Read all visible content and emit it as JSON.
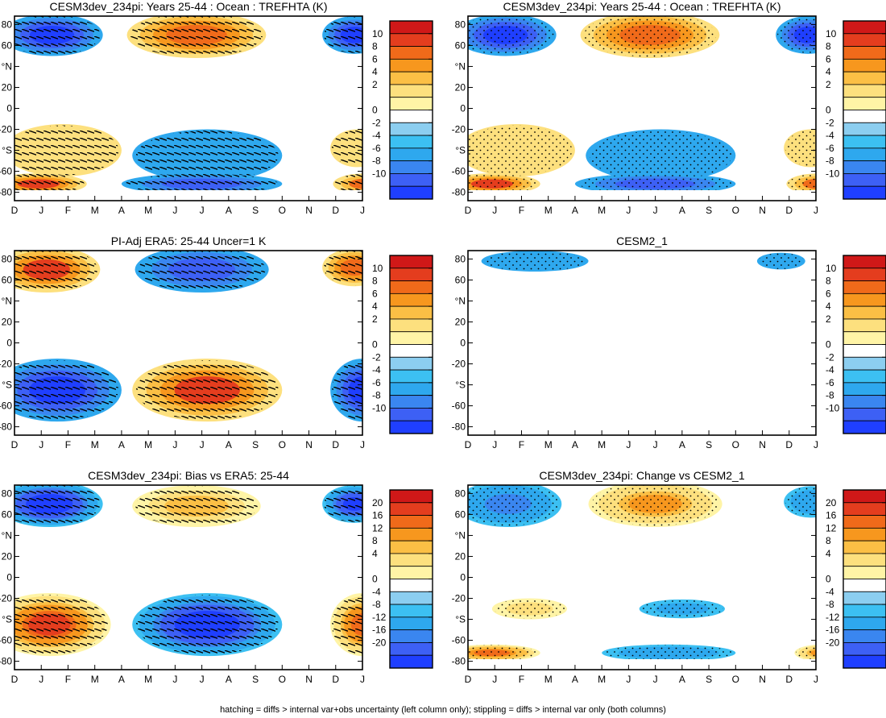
{
  "colors": {
    "scale": [
      "#1f3fff",
      "#3d60f5",
      "#3a86f0",
      "#2ea8ee",
      "#3cc0f2",
      "#8ccef0",
      "#ffffff",
      "#fff4a6",
      "#fde07e",
      "#fbbf45",
      "#f7971e",
      "#f06a1a",
      "#e43d1e",
      "#d01818"
    ]
  },
  "footer": "hatching = diffs > internal var+obs uncertainty (left column only); stippling = diffs > internal var only (both columns)",
  "chart_data": [
    {
      "id": "p1",
      "type": "heatmap",
      "title": "CESM3dev_234pi: Years 25-44 : Ocean : TREFHTA (K)",
      "x_ticks": [
        "D",
        "J",
        "F",
        "M",
        "A",
        "M",
        "J",
        "J",
        "A",
        "S",
        "O",
        "N",
        "D",
        "J"
      ],
      "y_ticks": [
        "80",
        "60",
        "°N",
        "20",
        "0",
        "-20",
        "°S",
        "-60",
        "-80"
      ],
      "colorbar": [
        "10",
        "8",
        "6",
        "4",
        "2",
        "0",
        "-2",
        "-4",
        "-6",
        "-8",
        "-10"
      ],
      "colorbar_range": [
        -10,
        10
      ],
      "overlay": "hatch",
      "blobs": [
        {
          "month": 1.4,
          "lat": 70,
          "wm": 1.9,
          "wl": 20,
          "value": -10
        },
        {
          "month": 6.8,
          "lat": 70,
          "wm": 2.6,
          "wl": 22,
          "value": 9
        },
        {
          "month": 12.7,
          "lat": 70,
          "wm": 1.2,
          "wl": 18,
          "value": -9
        },
        {
          "month": 1.8,
          "lat": -40,
          "wm": 2.2,
          "wl": 25,
          "value": 3
        },
        {
          "month": 0.9,
          "lat": -72,
          "wm": 1.8,
          "wl": 10,
          "value": 10
        },
        {
          "month": 7.2,
          "lat": -45,
          "wm": 2.8,
          "wl": 25,
          "value": -3
        },
        {
          "month": 7.0,
          "lat": -72,
          "wm": 3.0,
          "wl": 10,
          "value": -8
        },
        {
          "month": 13.1,
          "lat": -72,
          "wm": 1.2,
          "wl": 10,
          "value": 8
        },
        {
          "month": 12.8,
          "lat": -38,
          "wm": 1.0,
          "wl": 18,
          "value": 2
        }
      ]
    },
    {
      "id": "p2",
      "type": "heatmap",
      "title": "CESM3dev_234pi: Years 25-44 : Ocean : TREFHTA (K)",
      "x_ticks": [
        "D",
        "J",
        "F",
        "M",
        "A",
        "M",
        "J",
        "J",
        "A",
        "S",
        "O",
        "N",
        "D",
        "J"
      ],
      "y_ticks": [
        "80",
        "60",
        "°N",
        "20",
        "0",
        "-20",
        "°S",
        "-60",
        "-80"
      ],
      "colorbar": [
        "10",
        "8",
        "6",
        "4",
        "2",
        "0",
        "-2",
        "-4",
        "-6",
        "-8",
        "-10"
      ],
      "colorbar_range": [
        -10,
        10
      ],
      "overlay": "stipple",
      "blobs": [
        {
          "month": 1.4,
          "lat": 70,
          "wm": 1.9,
          "wl": 20,
          "value": -10
        },
        {
          "month": 6.8,
          "lat": 70,
          "wm": 2.6,
          "wl": 22,
          "value": 9
        },
        {
          "month": 12.7,
          "lat": 70,
          "wm": 1.2,
          "wl": 18,
          "value": -9
        },
        {
          "month": 1.8,
          "lat": -40,
          "wm": 2.2,
          "wl": 25,
          "value": 3
        },
        {
          "month": 0.9,
          "lat": -72,
          "wm": 1.8,
          "wl": 10,
          "value": 10
        },
        {
          "month": 7.2,
          "lat": -45,
          "wm": 2.8,
          "wl": 25,
          "value": -3
        },
        {
          "month": 7.0,
          "lat": -72,
          "wm": 3.0,
          "wl": 10,
          "value": -8
        },
        {
          "month": 13.1,
          "lat": -72,
          "wm": 1.2,
          "wl": 10,
          "value": 8
        },
        {
          "month": 12.8,
          "lat": -38,
          "wm": 1.0,
          "wl": 18,
          "value": 2
        }
      ]
    },
    {
      "id": "p3",
      "type": "heatmap",
      "title": "PI-Adj ERA5: 25-44 Uncer=1 K",
      "x_ticks": [
        "D",
        "J",
        "F",
        "M",
        "A",
        "M",
        "J",
        "J",
        "A",
        "S",
        "O",
        "N",
        "D",
        "J"
      ],
      "y_ticks": [
        "80",
        "60",
        "°N",
        "20",
        "0",
        "-20",
        "°S",
        "-60",
        "-80"
      ],
      "colorbar": [
        "10",
        "8",
        "6",
        "4",
        "2",
        "0",
        "-2",
        "-4",
        "-6",
        "-8",
        "-10"
      ],
      "colorbar_range": [
        -10,
        10
      ],
      "overlay": "hatch",
      "blobs": [
        {
          "month": 1.2,
          "lat": 70,
          "wm": 2.0,
          "wl": 22,
          "value": 10
        },
        {
          "month": 7.0,
          "lat": 70,
          "wm": 2.5,
          "wl": 22,
          "value": -8
        },
        {
          "month": 12.7,
          "lat": 72,
          "wm": 1.2,
          "wl": 18,
          "value": 9
        },
        {
          "month": 1.6,
          "lat": -45,
          "wm": 2.4,
          "wl": 30,
          "value": -10
        },
        {
          "month": 7.2,
          "lat": -45,
          "wm": 2.8,
          "wl": 30,
          "value": 10
        },
        {
          "month": 13.0,
          "lat": -45,
          "wm": 1.2,
          "wl": 30,
          "value": -9
        }
      ]
    },
    {
      "id": "p4",
      "type": "heatmap",
      "title": "CESM2_1",
      "x_ticks": [
        "D",
        "J",
        "F",
        "M",
        "A",
        "M",
        "J",
        "J",
        "A",
        "S",
        "O",
        "N",
        "D",
        "J"
      ],
      "y_ticks": [
        "80",
        "60",
        "°N",
        "20",
        "0",
        "-20",
        "°S",
        "-60",
        "-80"
      ],
      "colorbar": [
        "10",
        "8",
        "6",
        "4",
        "2",
        "0",
        "-2",
        "-4",
        "-6",
        "-8",
        "-10"
      ],
      "colorbar_range": [
        -10,
        10
      ],
      "overlay": "stipple",
      "blobs": [
        {
          "month": 2.5,
          "lat": 78,
          "wm": 2.0,
          "wl": 10,
          "value": -3
        },
        {
          "month": 11.7,
          "lat": 78,
          "wm": 0.9,
          "wl": 8,
          "value": -2.5
        }
      ]
    },
    {
      "id": "p5",
      "type": "heatmap",
      "title": "CESM3dev_234pi: Bias vs ERA5: 25-44",
      "x_ticks": [
        "D",
        "J",
        "F",
        "M",
        "A",
        "M",
        "J",
        "J",
        "A",
        "S",
        "O",
        "N",
        "D",
        "J"
      ],
      "y_ticks": [
        "80",
        "60",
        "°N",
        "20",
        "0",
        "-20",
        "°S",
        "-60",
        "-80"
      ],
      "colorbar": [
        "20",
        "16",
        "12",
        "8",
        "4",
        "0",
        "-4",
        "-8",
        "-12",
        "-16",
        "-20"
      ],
      "colorbar_range": [
        -20,
        20
      ],
      "overlay": "hatch",
      "blobs": [
        {
          "month": 1.3,
          "lat": 70,
          "wm": 2.0,
          "wl": 22,
          "value": -20
        },
        {
          "month": 6.8,
          "lat": 68,
          "wm": 2.4,
          "wl": 20,
          "value": 8
        },
        {
          "month": 12.7,
          "lat": 70,
          "wm": 1.2,
          "wl": 18,
          "value": -18
        },
        {
          "month": 1.3,
          "lat": -45,
          "wm": 2.3,
          "wl": 30,
          "value": 20
        },
        {
          "month": 7.2,
          "lat": -45,
          "wm": 2.8,
          "wl": 30,
          "value": -20
        },
        {
          "month": 13.0,
          "lat": -45,
          "wm": 1.2,
          "wl": 30,
          "value": 18
        }
      ]
    },
    {
      "id": "p6",
      "type": "heatmap",
      "title": "CESM3dev_234pi: Change vs CESM2_1",
      "x_ticks": [
        "D",
        "J",
        "F",
        "M",
        "A",
        "M",
        "J",
        "J",
        "A",
        "S",
        "O",
        "N",
        "D",
        "J"
      ],
      "y_ticks": [
        "80",
        "60",
        "°N",
        "20",
        "0",
        "-20",
        "°S",
        "-60",
        "-80"
      ],
      "colorbar": [
        "20",
        "16",
        "12",
        "8",
        "4",
        "0",
        "-4",
        "-8",
        "-12",
        "-16",
        "-20"
      ],
      "colorbar_range": [
        -20,
        20
      ],
      "overlay": "stipple",
      "blobs": [
        {
          "month": 1.5,
          "lat": 70,
          "wm": 2.0,
          "wl": 22,
          "value": -9
        },
        {
          "month": 7.0,
          "lat": 70,
          "wm": 2.5,
          "wl": 22,
          "value": 13
        },
        {
          "month": 12.8,
          "lat": 72,
          "wm": 1.0,
          "wl": 15,
          "value": -8
        },
        {
          "month": 2.3,
          "lat": -30,
          "wm": 1.4,
          "wl": 10,
          "value": 4
        },
        {
          "month": 0.9,
          "lat": -72,
          "wm": 1.8,
          "wl": 8,
          "value": 16
        },
        {
          "month": 8.0,
          "lat": -30,
          "wm": 1.6,
          "wl": 9,
          "value": -6
        },
        {
          "month": 7.5,
          "lat": -72,
          "wm": 2.5,
          "wl": 8,
          "value": -8
        },
        {
          "month": 13.2,
          "lat": -72,
          "wm": 1.0,
          "wl": 8,
          "value": 12
        }
      ]
    }
  ]
}
